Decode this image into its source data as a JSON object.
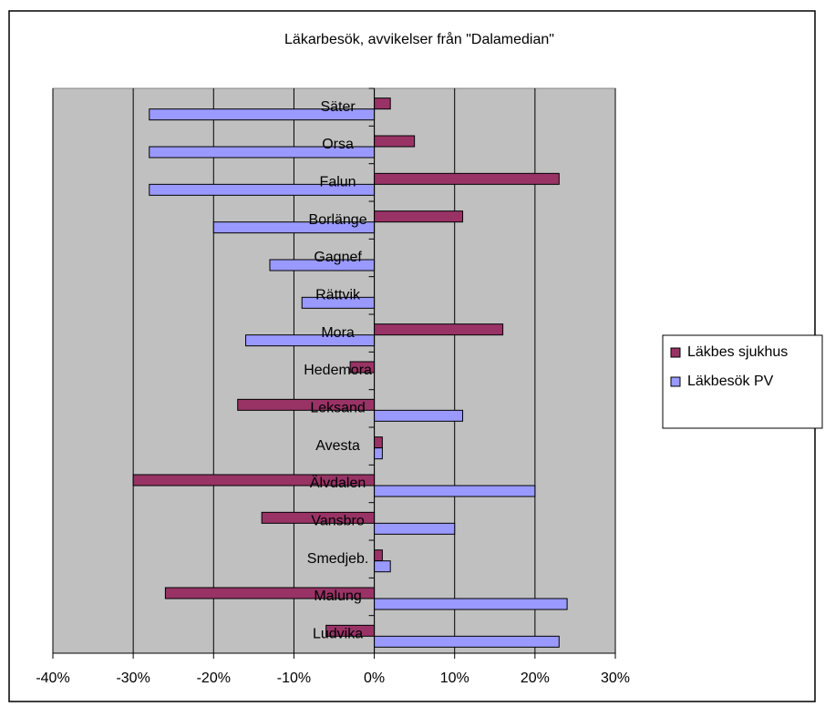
{
  "chart_data": {
    "type": "hbar",
    "title": "Läkarbesök, avvikelser från \"Dalamedian\"",
    "categories": [
      "Säter",
      "Orsa",
      "Falun",
      "Borlänge",
      "Gagnef",
      "Rättvik",
      "Mora",
      "Hedemora",
      "Leksand",
      "Avesta",
      "Älvdalen",
      "Vansbro",
      "Smedjeb.",
      "Malung",
      "Ludvika"
    ],
    "series": [
      {
        "name": "Läkbes sjukhus",
        "color": "#993366",
        "values": [
          2,
          5,
          23,
          11,
          0,
          0,
          16,
          -3,
          -17,
          1,
          -30,
          -14,
          1,
          -26,
          -6
        ]
      },
      {
        "name": "Läkbesök PV",
        "color": "#9999ff",
        "values": [
          -28,
          -28,
          -28,
          -20,
          -13,
          -9,
          -16,
          0,
          11,
          1,
          20,
          10,
          2,
          24,
          23
        ]
      }
    ],
    "xlim": [
      -40,
      30
    ],
    "xticks": [
      {
        "value": -40,
        "label": "-40%"
      },
      {
        "value": -30,
        "label": "-30%"
      },
      {
        "value": -20,
        "label": "-20%"
      },
      {
        "value": -10,
        "label": "-10%"
      },
      {
        "value": 0,
        "label": "0%"
      },
      {
        "value": 10,
        "label": "10%"
      },
      {
        "value": 20,
        "label": "20%"
      },
      {
        "value": 30,
        "label": "30%"
      }
    ],
    "grid": true,
    "legend": "right"
  }
}
